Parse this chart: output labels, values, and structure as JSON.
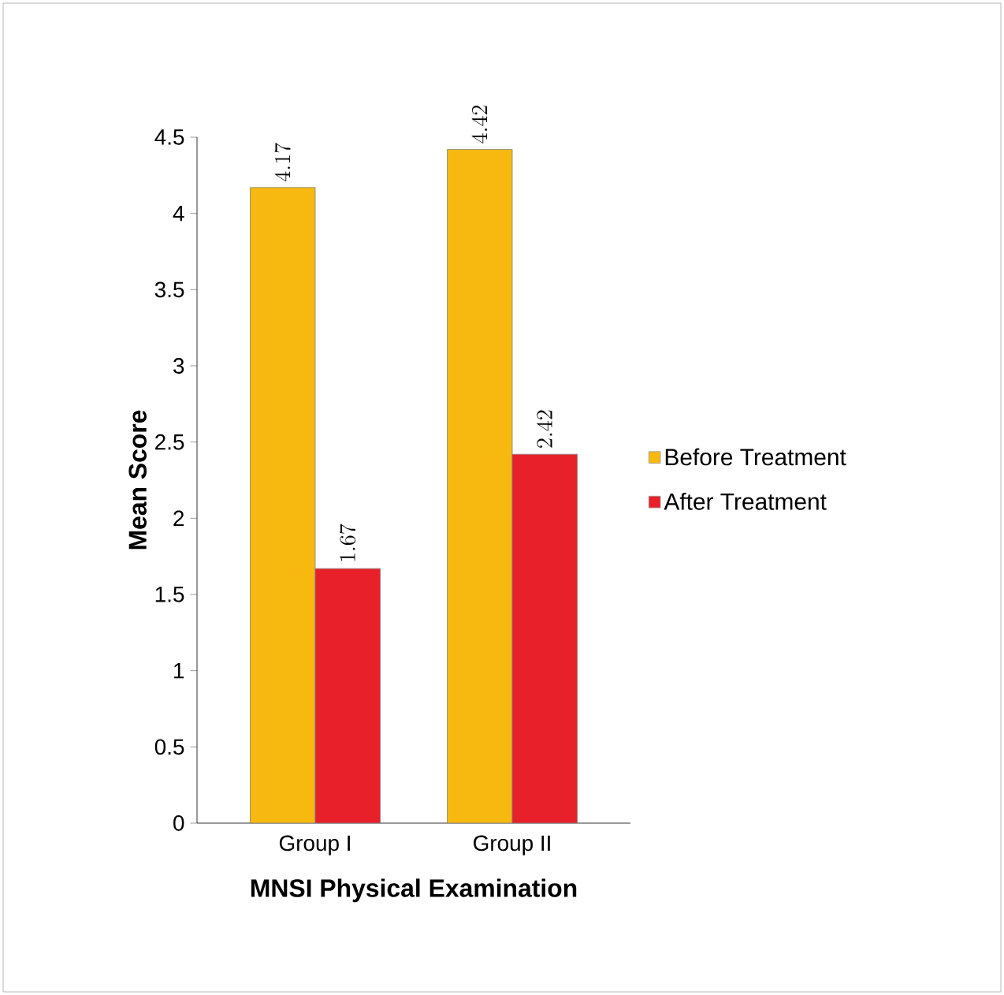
{
  "chart_data": {
    "type": "bar",
    "xlabel": "MNSI Physical Examination",
    "ylabel": "Mean Score",
    "categories": [
      "Group I",
      "Group II"
    ],
    "series": [
      {
        "name": "Before Treatment",
        "color": "#f7b90f",
        "values": [
          4.17,
          4.42
        ]
      },
      {
        "name": "After Treatment",
        "color": "#e8202a",
        "values": [
          1.67,
          2.42
        ]
      }
    ],
    "ylim": [
      0,
      4.5
    ],
    "yticks": [
      0,
      0.5,
      1,
      1.5,
      2,
      2.5,
      3,
      3.5,
      4,
      4.5
    ],
    "data_labels": true,
    "grid": false,
    "legend": "right"
  }
}
